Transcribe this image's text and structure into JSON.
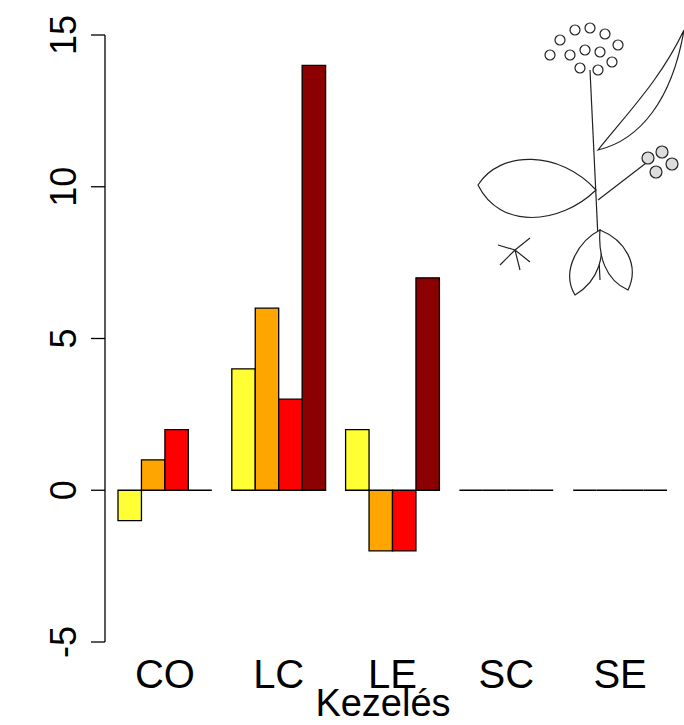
{
  "chart_data": {
    "type": "bar",
    "x_label": "Kezelés",
    "categories": [
      "CO",
      "LC",
      "LE",
      "SC",
      "SE"
    ],
    "series": [
      {
        "color": "#ffff33",
        "values": [
          -1,
          4,
          2,
          0,
          0
        ]
      },
      {
        "color": "#ffa500",
        "values": [
          1,
          6,
          -2,
          0,
          0
        ]
      },
      {
        "color": "#ff0000",
        "values": [
          2,
          3,
          -2,
          0,
          0
        ]
      },
      {
        "color": "#8b0000",
        "values": [
          0,
          14,
          7,
          0,
          0
        ]
      }
    ],
    "ylim": [
      -5,
      15
    ],
    "yticks": [
      -5,
      0,
      5,
      10,
      15
    ],
    "grid": false
  }
}
